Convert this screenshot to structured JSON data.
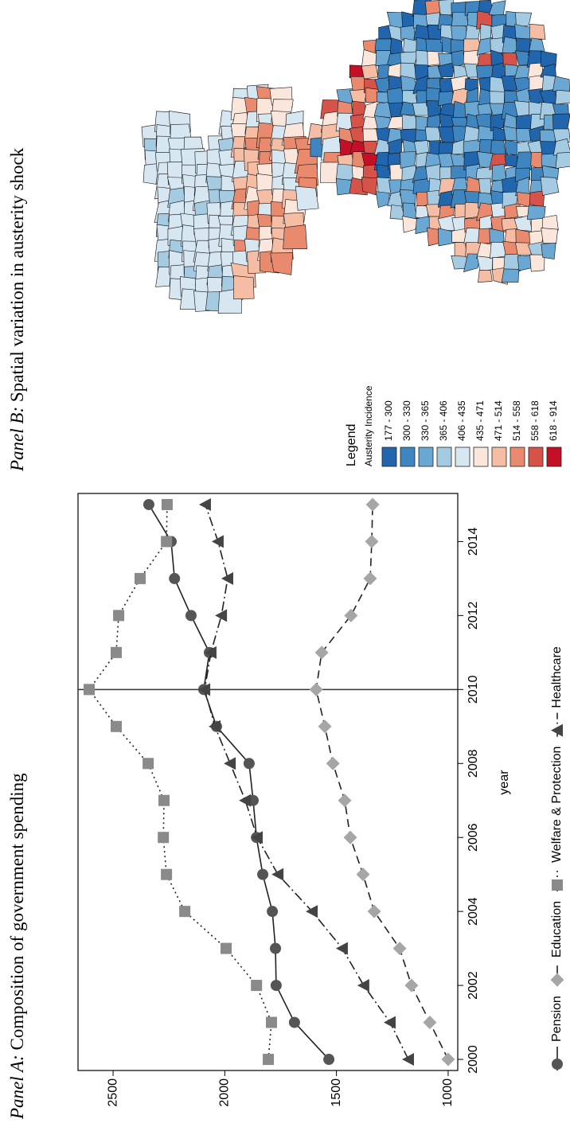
{
  "chart_data": {
    "type": "line",
    "panel": "Panel A:",
    "title": "Composition of government spending",
    "x_label": "year",
    "x": [
      2000,
      2001,
      2002,
      2003,
      2004,
      2005,
      2006,
      2007,
      2008,
      2009,
      2010,
      2011,
      2012,
      2013,
      2014,
      2015
    ],
    "series": [
      {
        "name": "Pension",
        "color": "#555555",
        "marker": "circle",
        "dash": "none",
        "values": [
          1534,
          1688,
          1770,
          1773,
          1787,
          1830,
          1858,
          1873,
          1891,
          2037,
          2094,
          2069,
          2151,
          2225,
          2240,
          2340
        ]
      },
      {
        "name": "Education",
        "color": "#a6a6a6",
        "marker": "diamond",
        "dash": "10 6",
        "values": [
          1000,
          1082,
          1164,
          1217,
          1331,
          1381,
          1438,
          1463,
          1516,
          1552,
          1591,
          1566,
          1435,
          1349,
          1342,
          1338
        ]
      },
      {
        "name": "Welfare & Protection",
        "color": "#8a8a8a",
        "marker": "square",
        "dash": "2 4",
        "values": [
          1805,
          1791,
          1858,
          1994,
          2179,
          2261,
          2275,
          2272,
          2343,
          2486,
          2607,
          2486,
          2475,
          2379,
          2261,
          2258
        ]
      },
      {
        "name": "Healthcare",
        "color": "#444444",
        "marker": "triangle",
        "dash": "12 4 2 4",
        "values": [
          1178,
          1260,
          1378,
          1474,
          1609,
          1762,
          1855,
          1908,
          1976,
          2044,
          2090,
          2062,
          2015,
          1987,
          2030,
          2087
        ]
      }
    ],
    "vline": 2010,
    "xlim": [
      1999.7,
      2015.3
    ],
    "xticks": [
      2000,
      2002,
      2004,
      2006,
      2008,
      2010,
      2012,
      2014
    ],
    "ylim": [
      957,
      2657
    ],
    "yticks": [
      1000,
      1500,
      2000,
      2500
    ]
  },
  "map": {
    "panel": "Panel B:",
    "title": "Spatial variation in austerity shock",
    "legend_title": "Legend",
    "legend_subtitle": "Austerity Incidence",
    "classes": [
      {
        "label": "177 - 300",
        "color": "#2166ac"
      },
      {
        "label": "300 - 330",
        "color": "#3f85bf"
      },
      {
        "label": "330 - 365",
        "color": "#6aa7d2"
      },
      {
        "label": "365 - 406",
        "color": "#a5cbe3"
      },
      {
        "label": "406 - 435",
        "color": "#d6e7f1"
      },
      {
        "label": "435 - 471",
        "color": "#fbe6dc"
      },
      {
        "label": "471 - 514",
        "color": "#f4bda4"
      },
      {
        "label": "514 - 558",
        "color": "#e98a6f"
      },
      {
        "label": "558 - 618",
        "color": "#d6534a"
      },
      {
        "label": "618 - 914",
        "color": "#c40f27"
      }
    ]
  }
}
